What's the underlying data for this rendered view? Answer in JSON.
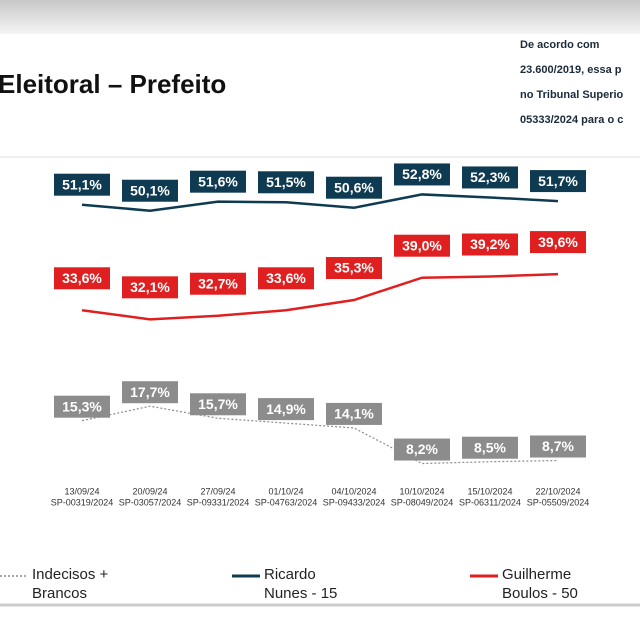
{
  "chart_data": {
    "type": "line",
    "title": "Eleitoral – Prefeito",
    "notes": [
      "De acordo com",
      "23.600/2019, essa p",
      "no Tribunal Superio",
      "05333/2024 para o c"
    ],
    "categories": [
      "13/09/24",
      "20/09/24",
      "27/09/24",
      "01/10/24",
      "04/10/2024",
      "10/10/2024",
      "15/10/2024",
      "22/10/2024"
    ],
    "registrations": [
      "SP-00319/2024",
      "SP-03057/2024",
      "SP-09331/2024",
      "SP-04763/2024",
      "SP-09433/2024",
      "SP-08049/2024",
      "SP-06311/2024",
      "SP-05509/2024"
    ],
    "ylim": [
      0,
      60
    ],
    "series": [
      {
        "name": "Indecisos + Brancos",
        "color": "#8c8c8c",
        "values": [
          15.3,
          17.7,
          15.7,
          14.9,
          14.1,
          8.2,
          8.5,
          8.7
        ],
        "value_labels": [
          "15,3%",
          "17,7%",
          "15,7%",
          "14,9%",
          "14,1%",
          "8,2%",
          "8,5%",
          "8,7%"
        ]
      },
      {
        "name": "Ricardo Nunes - 15",
        "color": "#0f3b52",
        "values": [
          51.1,
          50.1,
          51.6,
          51.5,
          50.6,
          52.8,
          52.3,
          51.7
        ],
        "value_labels": [
          "51,1%",
          "50,1%",
          "51,6%",
          "51,5%",
          "50,6%",
          "52,8%",
          "52,3%",
          "51,7%"
        ]
      },
      {
        "name": "Guilherme Boulos - 50",
        "color": "#e02020",
        "values": [
          33.6,
          32.1,
          32.7,
          33.6,
          35.3,
          39.0,
          39.2,
          39.6
        ],
        "value_labels": [
          "33,6%",
          "32,1%",
          "32,7%",
          "33,6%",
          "35,3%",
          "39,0%",
          "39,2%",
          "39,6%"
        ]
      }
    ]
  }
}
